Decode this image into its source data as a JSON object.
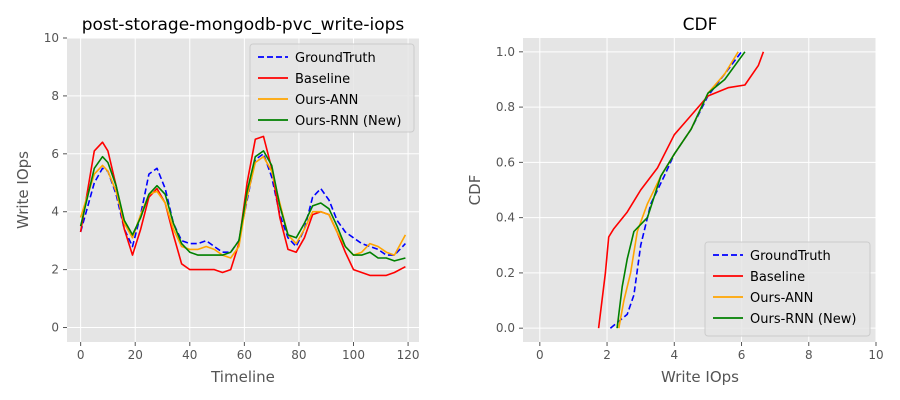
{
  "colors": {
    "background": "#e5e5e5",
    "grid": "#ffffff",
    "groundtruth": "#0000ff",
    "baseline": "#ff0000",
    "ours_ann": "#ffa500",
    "ours_rnn": "#008000"
  },
  "chart_data": [
    {
      "type": "line",
      "title": "post-storage-mongodb-pvc_write-iops",
      "xlabel": "Timeline",
      "ylabel": "Write IOps",
      "xlim": [
        -5,
        124
      ],
      "ylim": [
        -0.5,
        10
      ],
      "xticks": [
        0,
        20,
        40,
        60,
        80,
        100,
        120
      ],
      "yticks": [
        0,
        2,
        4,
        6,
        8,
        10
      ],
      "grid": true,
      "legend": "top-right",
      "x": [
        0,
        5,
        8,
        10,
        13,
        16,
        19,
        22,
        25,
        28,
        31,
        34,
        37,
        40,
        43,
        46,
        49,
        52,
        55,
        58,
        61,
        64,
        67,
        70,
        73,
        76,
        79,
        82,
        85,
        88,
        91,
        94,
        97,
        100,
        103,
        106,
        109,
        112,
        115,
        119
      ],
      "series": [
        {
          "name": "GroundTruth",
          "style": "dashed",
          "color": "#0000ff",
          "values": [
            3.3,
            5.0,
            5.5,
            5.4,
            4.6,
            3.4,
            2.8,
            3.9,
            5.3,
            5.5,
            4.8,
            3.6,
            3.0,
            2.9,
            2.9,
            3.0,
            2.8,
            2.6,
            2.6,
            3.0,
            4.4,
            5.8,
            6.0,
            5.2,
            3.9,
            3.1,
            2.8,
            3.4,
            4.5,
            4.8,
            4.4,
            3.7,
            3.3,
            3.1,
            2.9,
            2.8,
            2.7,
            2.5,
            2.5,
            2.9
          ]
        },
        {
          "name": "Baseline",
          "style": "solid",
          "color": "#ff0000",
          "values": [
            3.3,
            6.1,
            6.4,
            6.1,
            4.9,
            3.4,
            2.5,
            3.4,
            4.5,
            4.8,
            4.3,
            3.2,
            2.2,
            2.0,
            2.0,
            2.0,
            2.0,
            1.9,
            2.0,
            2.9,
            5.0,
            6.5,
            6.6,
            5.5,
            3.8,
            2.7,
            2.6,
            3.1,
            3.9,
            4.0,
            3.9,
            3.3,
            2.6,
            2.0,
            1.9,
            1.8,
            1.8,
            1.8,
            1.9,
            2.1
          ]
        },
        {
          "name": "Ours-ANN",
          "style": "solid",
          "color": "#ffa500",
          "values": [
            3.8,
            5.3,
            5.6,
            5.4,
            4.7,
            3.6,
            3.1,
            3.9,
            4.6,
            4.7,
            4.3,
            3.4,
            2.8,
            2.7,
            2.7,
            2.8,
            2.7,
            2.5,
            2.4,
            2.8,
            4.5,
            5.7,
            5.9,
            5.4,
            4.3,
            3.2,
            2.9,
            3.4,
            4.0,
            4.0,
            3.9,
            3.3,
            2.8,
            2.5,
            2.6,
            2.9,
            2.8,
            2.6,
            2.5,
            3.2
          ]
        },
        {
          "name": "Ours-RNN (New)",
          "style": "solid",
          "color": "#008000",
          "values": [
            3.5,
            5.5,
            5.9,
            5.7,
            4.9,
            3.7,
            3.2,
            3.8,
            4.6,
            4.9,
            4.6,
            3.6,
            2.9,
            2.6,
            2.5,
            2.5,
            2.5,
            2.5,
            2.6,
            3.0,
            4.7,
            5.9,
            6.1,
            5.6,
            4.2,
            3.2,
            3.1,
            3.6,
            4.2,
            4.3,
            4.1,
            3.5,
            2.8,
            2.5,
            2.5,
            2.6,
            2.4,
            2.4,
            2.3,
            2.4
          ]
        }
      ]
    },
    {
      "type": "line",
      "title": "CDF",
      "xlabel": "Write IOps",
      "ylabel": "CDF",
      "xlim": [
        -0.5,
        10
      ],
      "ylim": [
        -0.05,
        1.05
      ],
      "xticks": [
        0,
        2,
        4,
        6,
        8,
        10
      ],
      "yticks": [
        0.0,
        0.2,
        0.4,
        0.6,
        0.8,
        1.0
      ],
      "grid": true,
      "legend": "bottom-right",
      "series": [
        {
          "name": "GroundTruth",
          "style": "dashed",
          "color": "#0000ff",
          "x": [
            2.1,
            2.3,
            2.6,
            2.8,
            3.0,
            3.3,
            3.7,
            4.0,
            4.5,
            5.0,
            5.5,
            6.0
          ],
          "y": [
            0.0,
            0.02,
            0.05,
            0.12,
            0.3,
            0.45,
            0.55,
            0.63,
            0.72,
            0.84,
            0.92,
            1.0
          ]
        },
        {
          "name": "Baseline",
          "style": "solid",
          "color": "#ff0000",
          "x": [
            1.75,
            1.85,
            1.95,
            2.05,
            2.2,
            2.6,
            3.0,
            3.5,
            4.0,
            4.5,
            5.0,
            5.6,
            6.1,
            6.5,
            6.65
          ],
          "y": [
            0.0,
            0.1,
            0.2,
            0.33,
            0.36,
            0.42,
            0.5,
            0.58,
            0.7,
            0.77,
            0.84,
            0.87,
            0.88,
            0.95,
            1.0
          ]
        },
        {
          "name": "Ours-ANN",
          "style": "solid",
          "color": "#ffa500",
          "x": [
            2.35,
            2.5,
            2.7,
            2.9,
            3.2,
            3.6,
            4.0,
            4.5,
            5.0,
            5.5,
            5.9
          ],
          "y": [
            0.0,
            0.1,
            0.2,
            0.35,
            0.45,
            0.55,
            0.63,
            0.72,
            0.85,
            0.92,
            1.0
          ]
        },
        {
          "name": "Ours-RNN (New)",
          "style": "solid",
          "color": "#008000",
          "x": [
            2.3,
            2.45,
            2.6,
            2.8,
            3.2,
            3.6,
            4.0,
            4.5,
            5.0,
            5.5,
            6.1
          ],
          "y": [
            0.0,
            0.15,
            0.25,
            0.35,
            0.4,
            0.55,
            0.63,
            0.72,
            0.85,
            0.9,
            1.0
          ]
        }
      ]
    }
  ]
}
